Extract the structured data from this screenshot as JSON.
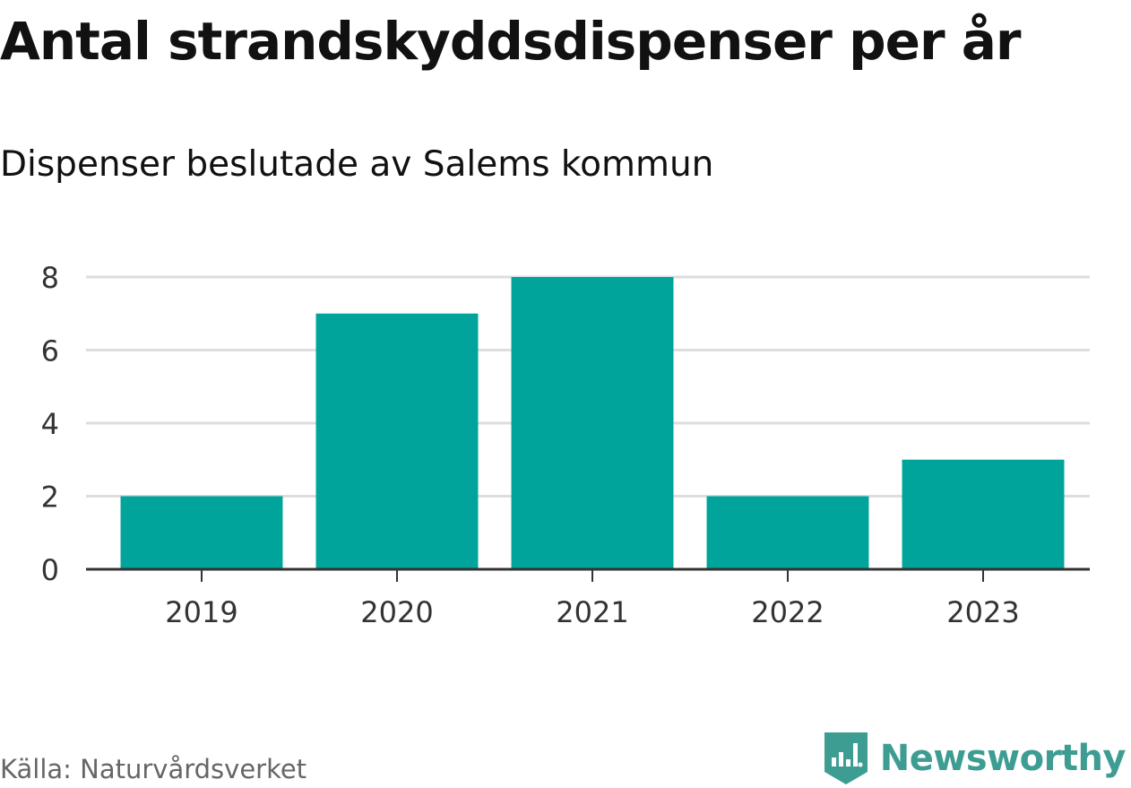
{
  "chart_data": {
    "type": "bar",
    "title": "Antal strandskyddsdispenser per år",
    "subtitle": "Dispenser beslutade av Salems kommun",
    "categories": [
      "2019",
      "2020",
      "2021",
      "2022",
      "2023"
    ],
    "values": [
      2,
      7,
      8,
      2,
      3
    ],
    "xlabel": "",
    "ylabel": "",
    "ylim": [
      0,
      8
    ],
    "yticks": [
      "0",
      "2",
      "4",
      "6",
      "8"
    ],
    "grid": true,
    "bar_color": "#00a49a",
    "gridline_color": "#dddddd",
    "axis_color": "#333333"
  },
  "footer": {
    "source": "Källa: Naturvårdsverket",
    "brand": "Newsworthy",
    "brand_color": "#3d9d92"
  }
}
